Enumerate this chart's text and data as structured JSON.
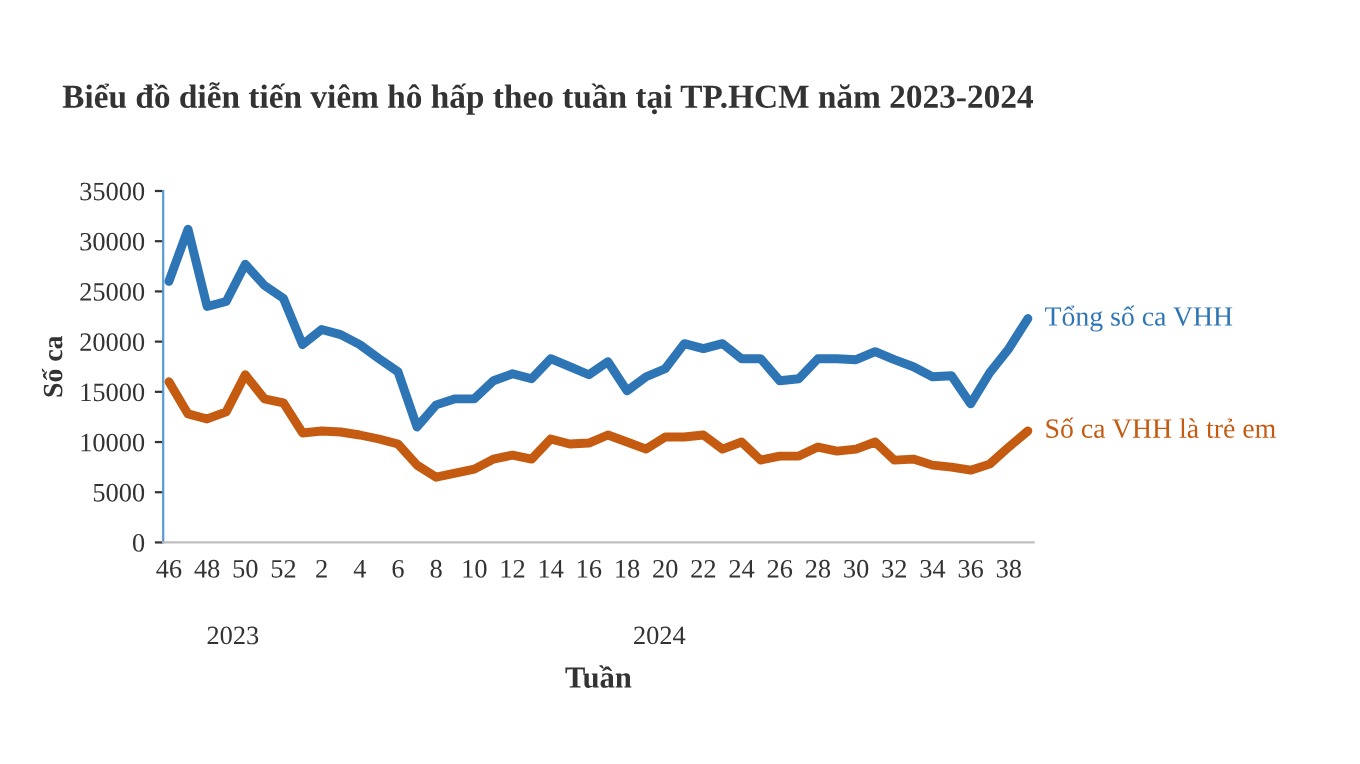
{
  "chart_data": {
    "type": "line",
    "title": "Biểu đồ diễn tiến viêm hô hấp theo tuần tại TP.HCM năm 2023-2024",
    "xlabel": "Tuần",
    "ylabel": "Số ca",
    "categories": [
      "46",
      null,
      "48",
      null,
      "50",
      null,
      "52",
      null,
      "2",
      null,
      "4",
      null,
      "6",
      null,
      "8",
      null,
      "10",
      null,
      "12",
      null,
      "14",
      null,
      "16",
      null,
      "18",
      null,
      "20",
      null,
      "22",
      null,
      "24",
      null,
      "26",
      null,
      "28",
      null,
      "30",
      null,
      "32",
      null,
      "34",
      null,
      "36",
      null,
      "38",
      null
    ],
    "series": [
      {
        "name": "Tổng số ca VHH",
        "color": "#2e75b6",
        "values": [
          26000,
          31200,
          23500,
          24000,
          27700,
          25600,
          24300,
          19700,
          21200,
          20700,
          19700,
          18300,
          17000,
          11500,
          13700,
          14300,
          14300,
          16100,
          16800,
          16300,
          18300,
          17500,
          16700,
          18000,
          15100,
          16500,
          17300,
          19800,
          19300,
          19800,
          18300,
          18300,
          16100,
          16300,
          18300,
          18300,
          18200,
          19000,
          18200,
          17500,
          16500,
          16600,
          13800,
          16900,
          19300,
          22300
        ]
      },
      {
        "name": "Số ca VHH là trẻ em",
        "color": "#c55a11",
        "values": [
          16000,
          12800,
          12300,
          13000,
          16700,
          14300,
          13900,
          10900,
          11100,
          11000,
          10700,
          10300,
          9800,
          7700,
          6500,
          6900,
          7300,
          8300,
          8700,
          8300,
          10300,
          9800,
          9900,
          10700,
          10000,
          9300,
          10500,
          10500,
          10700,
          9300,
          10000,
          8200,
          8600,
          8600,
          9500,
          9100,
          9300,
          10000,
          8200,
          8300,
          7700,
          7500,
          7200,
          7800,
          9500,
          11100
        ]
      }
    ],
    "annotations": [
      "2023",
      "2024"
    ],
    "ylim": [
      0,
      35000
    ],
    "yticks": [
      0,
      5000,
      10000,
      15000,
      20000,
      25000,
      30000,
      35000
    ],
    "grid": false,
    "legend": false,
    "marker": "none",
    "line_style": "solid"
  }
}
